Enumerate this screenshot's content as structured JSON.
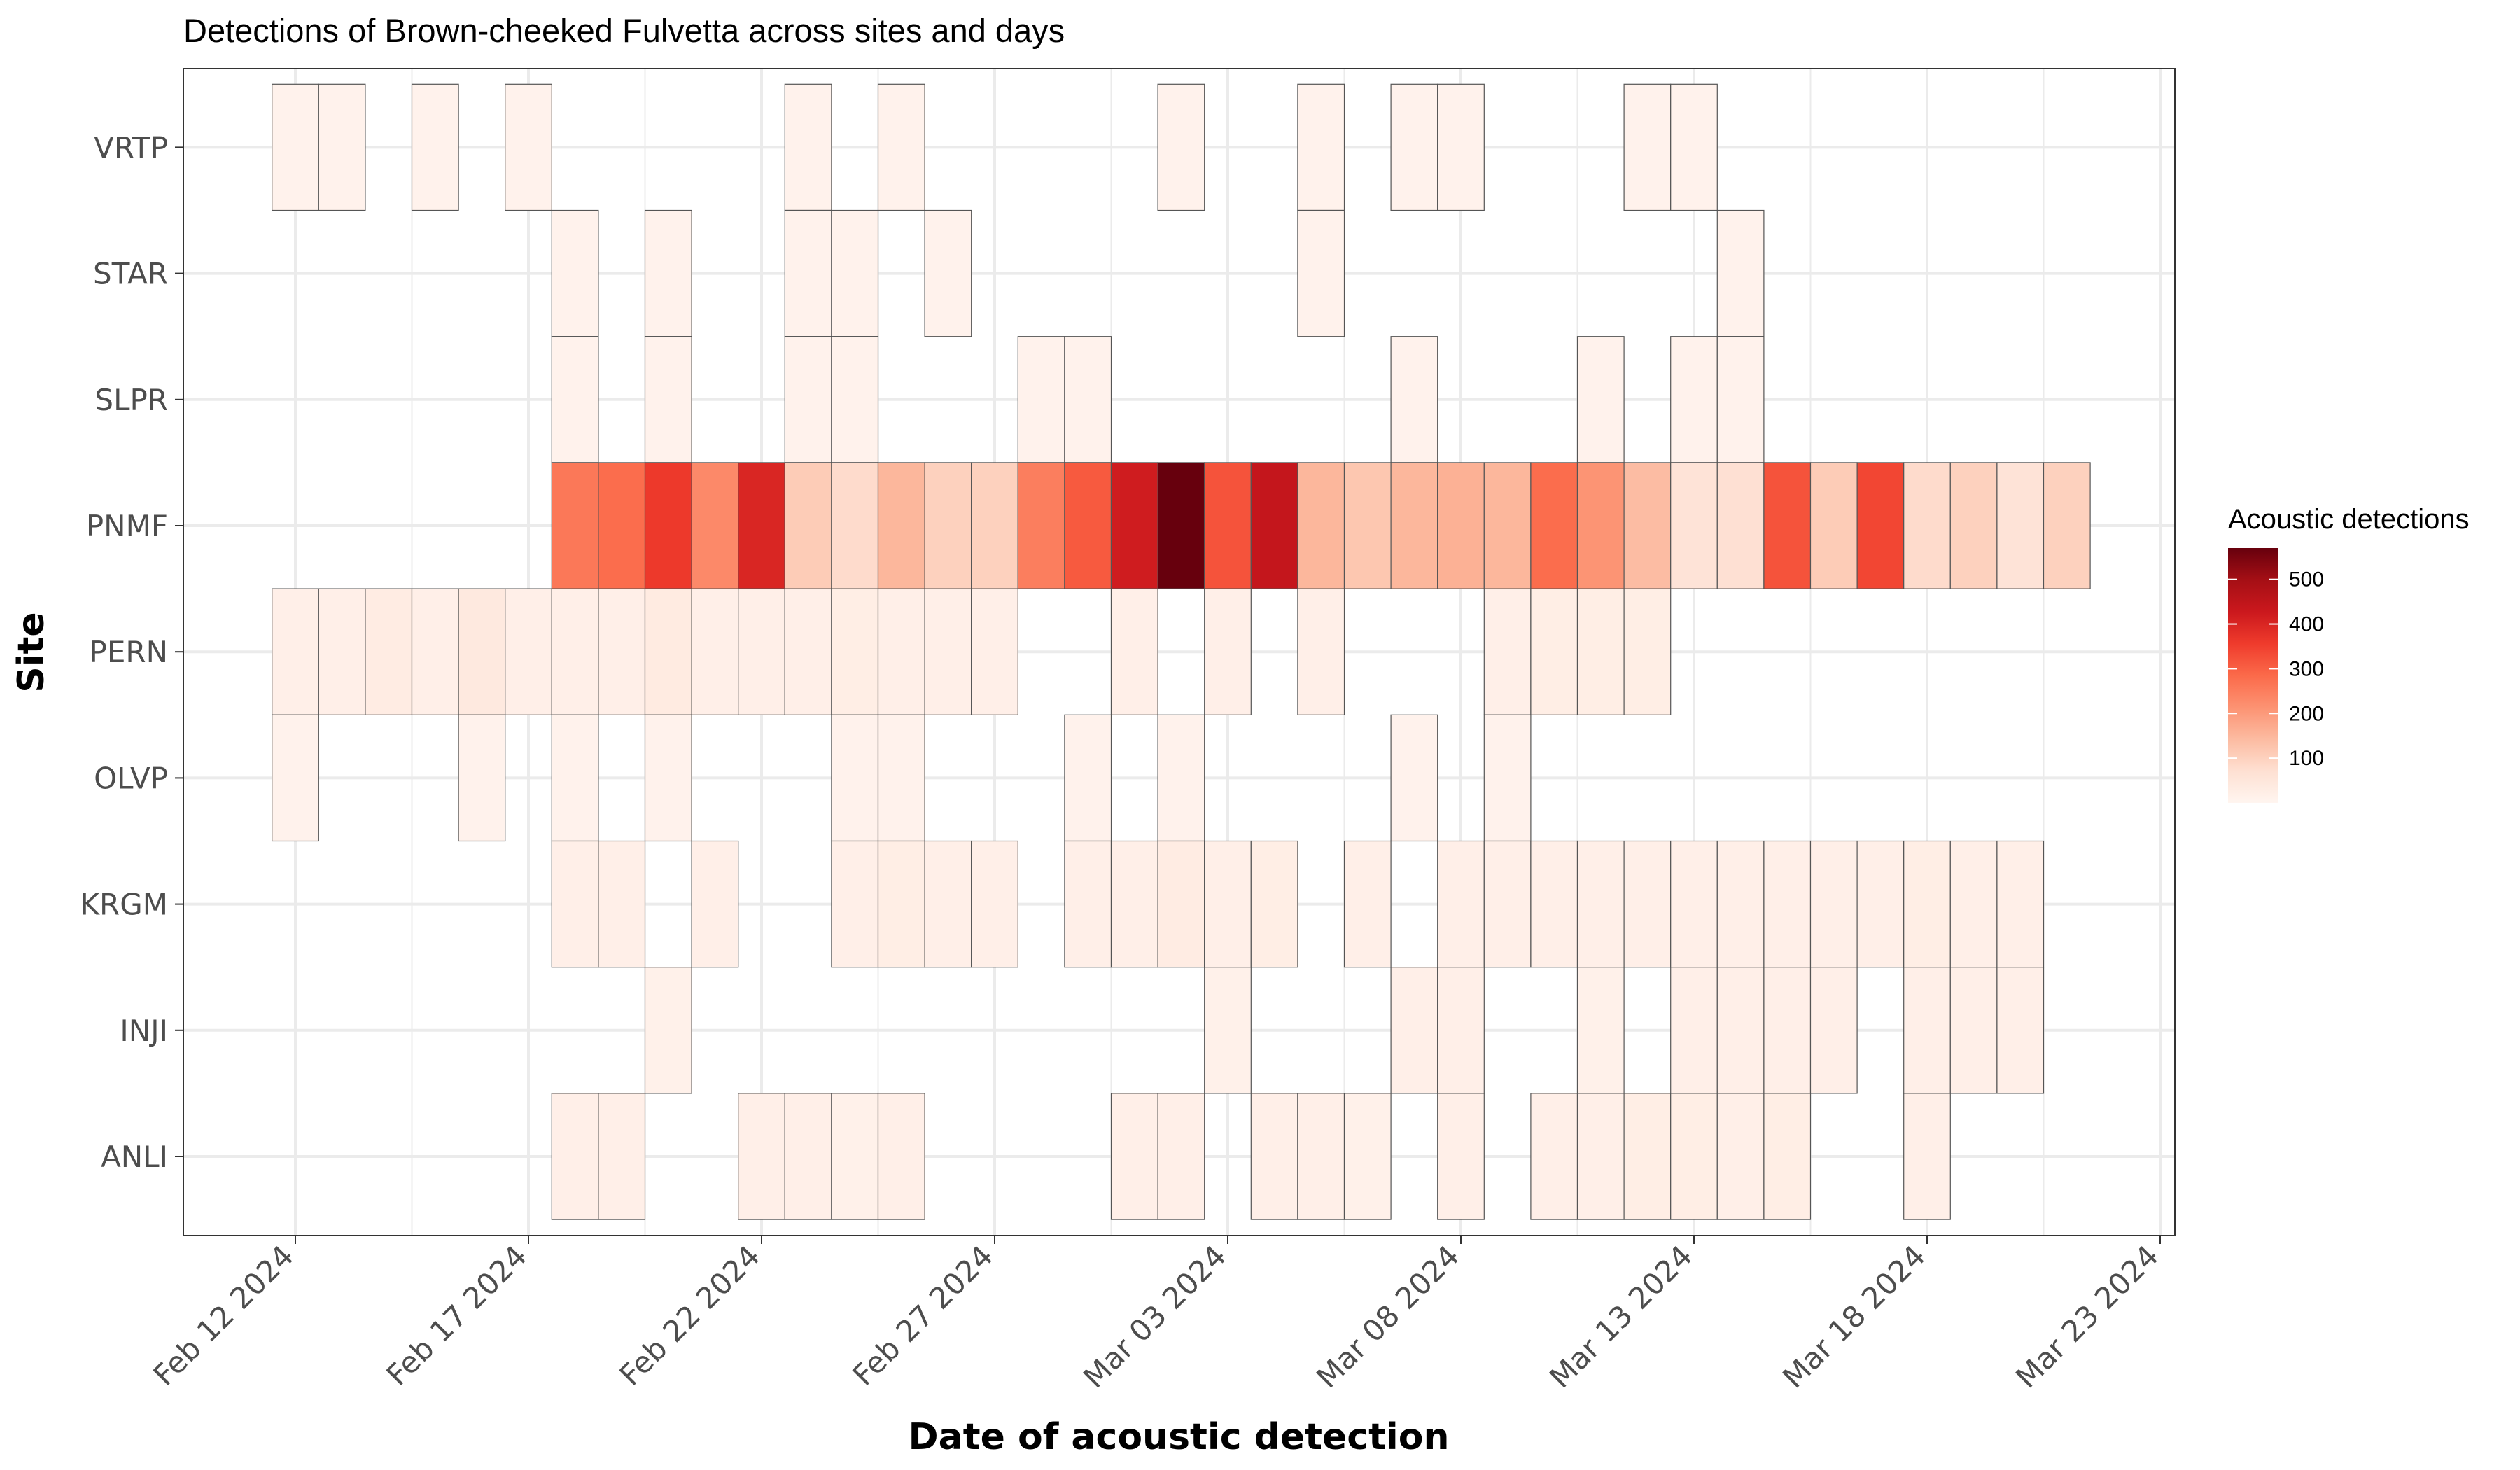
{
  "chart_data": {
    "type": "heatmap",
    "title": "Detections of Brown-cheeked Fulvetta across sites and days",
    "xlabel": "Date of acoustic detection",
    "ylabel": "Site",
    "x_ticks": [
      "Feb 12 2024",
      "Feb 17 2024",
      "Feb 22 2024",
      "Feb 27 2024",
      "Mar 03 2024",
      "Mar 08 2024",
      "Mar 13 2024",
      "Mar 18 2024",
      "Mar 23 2024"
    ],
    "sites": [
      "ANLI",
      "INJI",
      "KRGM",
      "OLVP",
      "PERN",
      "PNMF",
      "SLPR",
      "STAR",
      "VRTP"
    ],
    "dates": [
      "2024-02-12",
      "2024-02-13",
      "2024-02-14",
      "2024-02-15",
      "2024-02-16",
      "2024-02-17",
      "2024-02-18",
      "2024-02-19",
      "2024-02-20",
      "2024-02-21",
      "2024-02-22",
      "2024-02-23",
      "2024-02-24",
      "2024-02-25",
      "2024-02-26",
      "2024-02-27",
      "2024-02-28",
      "2024-02-29",
      "2024-03-01",
      "2024-03-02",
      "2024-03-03",
      "2024-03-04",
      "2024-03-05",
      "2024-03-06",
      "2024-03-07",
      "2024-03-08",
      "2024-03-09",
      "2024-03-10",
      "2024-03-11",
      "2024-03-12",
      "2024-03-13",
      "2024-03-14",
      "2024-03-15",
      "2024-03-16",
      "2024-03-17",
      "2024-03-18",
      "2024-03-19",
      "2024-03-20",
      "2024-03-21",
      "2024-03-22",
      "2024-03-23"
    ],
    "series": [
      {
        "name": "VRTP",
        "values": [
          10,
          10,
          null,
          10,
          null,
          10,
          null,
          null,
          null,
          null,
          null,
          10,
          null,
          10,
          null,
          null,
          null,
          null,
          null,
          10,
          null,
          null,
          10,
          null,
          10,
          10,
          null,
          null,
          null,
          10,
          10,
          null,
          null,
          null,
          null,
          null,
          null,
          null,
          null,
          null,
          null
        ]
      },
      {
        "name": "STAR",
        "values": [
          null,
          null,
          null,
          null,
          null,
          null,
          10,
          null,
          10,
          null,
          null,
          10,
          10,
          null,
          10,
          null,
          null,
          null,
          null,
          null,
          null,
          null,
          10,
          null,
          null,
          null,
          null,
          null,
          null,
          null,
          null,
          10,
          null,
          null,
          null,
          null,
          null,
          null,
          null,
          null,
          null
        ]
      },
      {
        "name": "SLPR",
        "values": [
          null,
          null,
          null,
          null,
          null,
          null,
          10,
          null,
          10,
          null,
          null,
          10,
          10,
          null,
          null,
          null,
          10,
          10,
          null,
          null,
          null,
          null,
          null,
          null,
          10,
          null,
          null,
          null,
          10,
          null,
          10,
          10,
          null,
          null,
          null,
          null,
          null,
          null,
          null,
          null,
          null
        ]
      },
      {
        "name": "PNMF",
        "values": [
          null,
          null,
          null,
          null,
          null,
          null,
          260,
          280,
          360,
          230,
          400,
          110,
          80,
          150,
          100,
          100,
          250,
          310,
          420,
          570,
          320,
          440,
          150,
          120,
          150,
          160,
          150,
          280,
          210,
          140,
          60,
          70,
          320,
          110,
          340,
          80,
          100,
          60,
          100,
          null,
          null
        ]
      },
      {
        "name": "PERN",
        "values": [
          20,
          20,
          30,
          20,
          40,
          20,
          20,
          20,
          35,
          20,
          20,
          20,
          25,
          20,
          20,
          20,
          null,
          null,
          20,
          null,
          20,
          null,
          20,
          null,
          null,
          null,
          20,
          25,
          25,
          25,
          null,
          null,
          null,
          null,
          null,
          null,
          null,
          null,
          null,
          null,
          null
        ]
      },
      {
        "name": "OLVP",
        "values": [
          10,
          null,
          null,
          null,
          10,
          null,
          10,
          null,
          10,
          null,
          null,
          null,
          10,
          10,
          null,
          null,
          null,
          10,
          null,
          10,
          null,
          null,
          null,
          null,
          10,
          null,
          10,
          null,
          null,
          null,
          null,
          null,
          null,
          null,
          null,
          null,
          null,
          null,
          null,
          null,
          null
        ]
      },
      {
        "name": "KRGM",
        "values": [
          null,
          null,
          null,
          null,
          null,
          null,
          20,
          20,
          null,
          20,
          null,
          null,
          20,
          25,
          20,
          20,
          null,
          20,
          20,
          30,
          20,
          25,
          null,
          20,
          null,
          20,
          20,
          20,
          20,
          20,
          20,
          20,
          20,
          20,
          20,
          25,
          20,
          20,
          null,
          null,
          null
        ]
      },
      {
        "name": "INJI",
        "values": [
          null,
          null,
          null,
          null,
          null,
          null,
          null,
          null,
          15,
          null,
          null,
          null,
          null,
          null,
          null,
          null,
          null,
          null,
          null,
          null,
          15,
          null,
          null,
          null,
          20,
          20,
          null,
          null,
          15,
          null,
          20,
          20,
          20,
          20,
          null,
          20,
          20,
          20,
          null,
          null,
          null
        ]
      },
      {
        "name": "ANLI",
        "values": [
          null,
          null,
          null,
          null,
          null,
          null,
          20,
          20,
          null,
          null,
          20,
          20,
          15,
          20,
          null,
          null,
          null,
          null,
          20,
          20,
          null,
          20,
          20,
          15,
          null,
          20,
          null,
          20,
          20,
          25,
          25,
          20,
          25,
          null,
          null,
          20,
          null,
          null,
          null,
          null,
          null
        ]
      }
    ],
    "legend": {
      "title": "Acoustic detections",
      "ticks": [
        100,
        200,
        300,
        400,
        500
      ],
      "range": [
        0,
        570
      ],
      "placement": "right"
    },
    "colors": [
      "#fff5f0",
      "#fee0d2",
      "#fcbba1",
      "#fc9272",
      "#fb6a4a",
      "#ef3b2c",
      "#cb181d",
      "#a50f15",
      "#67000d"
    ],
    "grid": true
  }
}
